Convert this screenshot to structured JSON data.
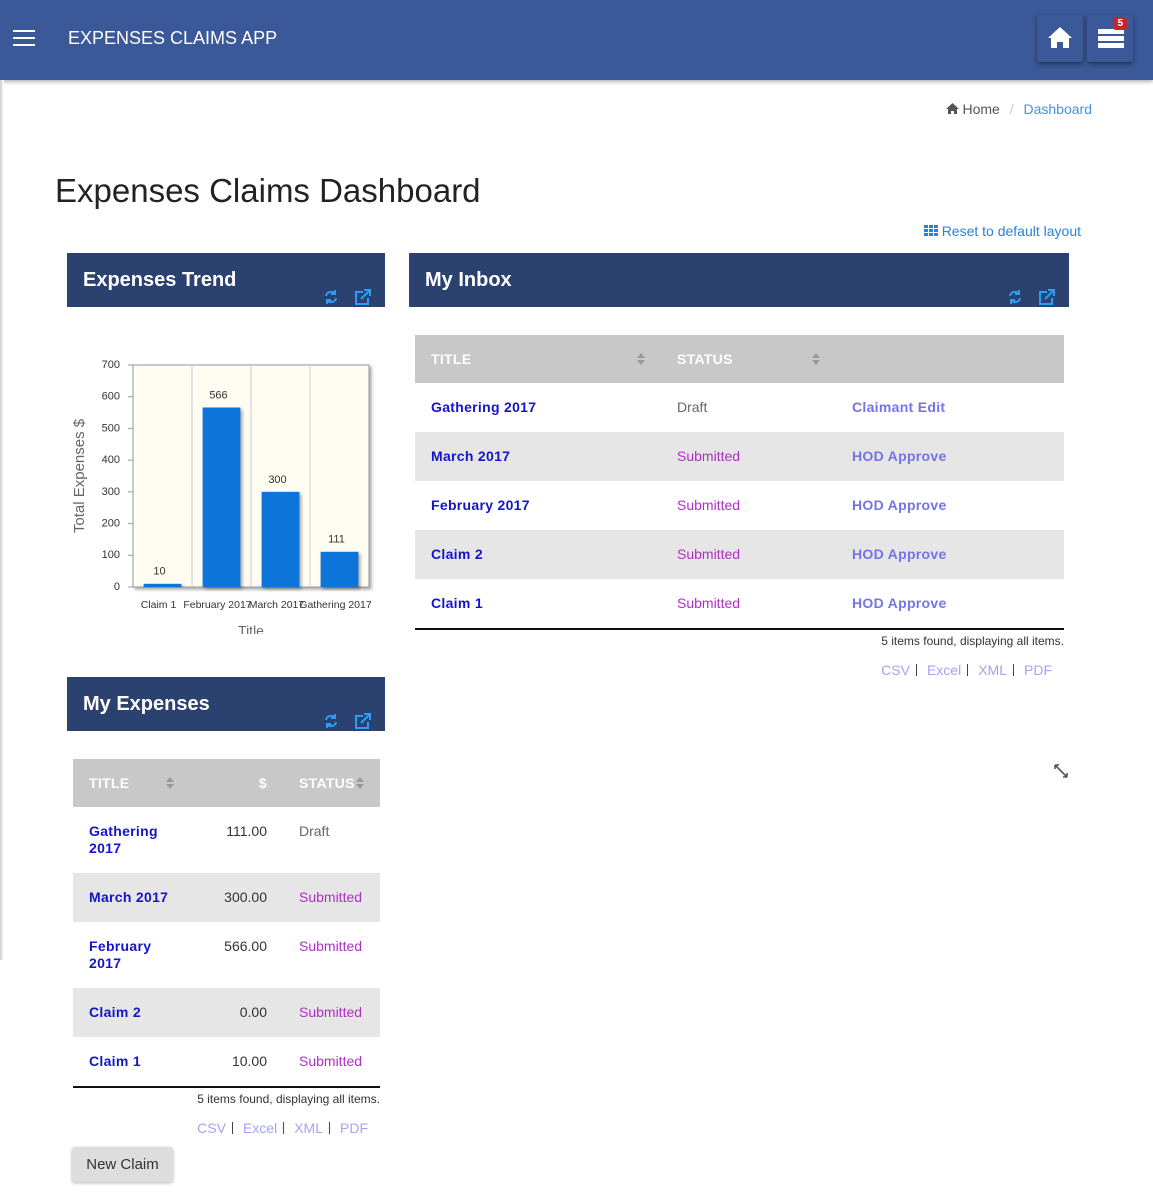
{
  "header": {
    "title": "EXPENSES CLAIMS APP",
    "notifications": 5
  },
  "breadcrumb": {
    "home": "Home",
    "current": "Dashboard"
  },
  "page_title": "Expenses Claims Dashboard",
  "reset_layout": "Reset to default layout",
  "panels": {
    "trend": "Expenses Trend",
    "inbox": "My Inbox",
    "expenses": "My Expenses"
  },
  "chart_data": {
    "type": "bar",
    "categories": [
      "Claim 1",
      "February 2017",
      "March 2017",
      "Gathering 2017"
    ],
    "values": [
      10,
      566,
      300,
      111
    ],
    "color": "#0a74da",
    "ylim": [
      0,
      700
    ],
    "yticks": [
      0,
      100,
      200,
      300,
      400,
      500,
      600,
      700
    ],
    "y_label": "Total Expenses $",
    "x_label": "Title"
  },
  "status_colors": {
    "Draft": "#666666",
    "Submitted": "#b02fc4"
  },
  "inbox": {
    "columns": [
      "TITLE",
      "STATUS"
    ],
    "rows": [
      [
        "Gathering 2017",
        "Draft",
        "Claimant Edit"
      ],
      [
        "March 2017",
        "Submitted",
        "HOD Approve"
      ],
      [
        "February 2017",
        "Submitted",
        "HOD Approve"
      ],
      [
        "Claim 2",
        "Submitted",
        "HOD Approve"
      ],
      [
        "Claim 1",
        "Submitted",
        "HOD Approve"
      ]
    ],
    "summary": "5 items found, displaying all items.",
    "exports": [
      "CSV",
      "Excel",
      "XML",
      "PDF"
    ]
  },
  "expenses": {
    "columns": [
      "TITLE",
      "$",
      "STATUS"
    ],
    "rows": [
      [
        "Gathering 2017",
        "111.00",
        "Draft"
      ],
      [
        "March 2017",
        "300.00",
        "Submitted"
      ],
      [
        "February 2017",
        "566.00",
        "Submitted"
      ],
      [
        "Claim 2",
        "0.00",
        "Submitted"
      ],
      [
        "Claim 1",
        "10.00",
        "Submitted"
      ]
    ],
    "summary": "5 items found, displaying all items.",
    "exports": [
      "CSV",
      "Excel",
      "XML",
      "PDF"
    ]
  },
  "new_claim": "New Claim"
}
